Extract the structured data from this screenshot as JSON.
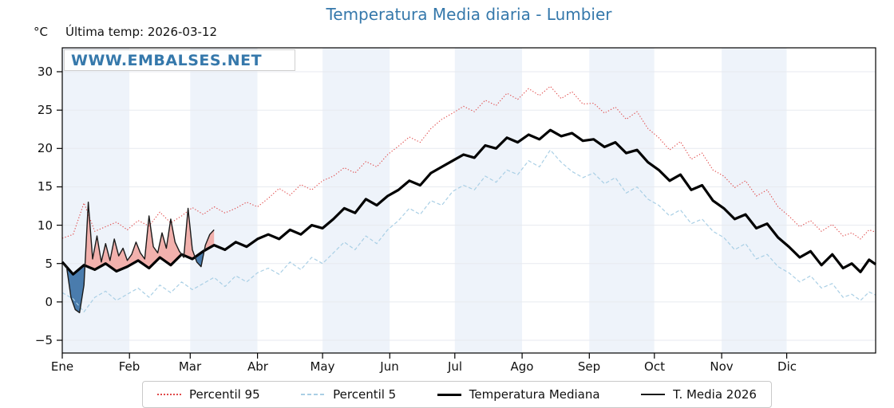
{
  "header": {
    "title": "Temperatura Media diaria - Lumbier",
    "units_label": "°C",
    "last_temp": "Última temp: 2026-03-12",
    "watermark": "WWW.EMBALSES.NET"
  },
  "legend": {
    "items": [
      {
        "label": "Percentil 95",
        "style": "red-dotted"
      },
      {
        "label": "Percentil 5",
        "style": "lightblue-dashed"
      },
      {
        "label": "Temperatura Mediana",
        "style": "black-thick"
      },
      {
        "label": "T. Media 2026",
        "style": "black-thin"
      }
    ]
  },
  "chart_data": {
    "type": "line",
    "title": "Temperatura Media diaria - Lumbier",
    "ylabel": "°C",
    "xlabel": "",
    "x_unit": "day_of_year",
    "xlim": [
      0,
      375
    ],
    "ylim": [
      -6.66,
      33.12
    ],
    "ytick_values": [
      -5,
      0,
      5,
      10,
      15,
      20,
      25,
      30
    ],
    "ytick_labels": [
      "−5",
      "0",
      "5",
      "10",
      "15",
      "20",
      "25",
      "30"
    ],
    "xtick_labels": [
      "Ene",
      "Feb",
      "Mar",
      "Abr",
      "May",
      "Jun",
      "Jul",
      "Ago",
      "Sep",
      "Oct",
      "Nov",
      "Dic"
    ],
    "month_start_days": [
      0,
      31,
      59,
      90,
      120,
      151,
      181,
      212,
      243,
      273,
      304,
      334
    ],
    "year_end_day": 365,
    "grid": true,
    "legend_position": "bottom",
    "annotation": "Última temp: 2026-03-12",
    "colors": {
      "title": "#3578ab",
      "watermark": "#3578ab",
      "axis": "#000000",
      "grid": "#e7eaef",
      "band_odd_month": "#eef3fa",
      "band_even_month": "#ffffff",
      "fill_above_median": "#f2b1ad",
      "fill_below_median": "#4a7cad"
    },
    "series": [
      {
        "name": "Percentil 95",
        "color": "#e04a4a",
        "style": "dotted",
        "width": 1.1,
        "x": [
          0,
          5,
          10,
          15,
          20,
          25,
          30,
          35,
          40,
          45,
          50,
          55,
          60,
          65,
          70,
          75,
          80,
          85,
          90,
          95,
          100,
          105,
          110,
          115,
          120,
          125,
          130,
          135,
          140,
          145,
          150,
          155,
          160,
          165,
          170,
          175,
          180,
          185,
          190,
          195,
          200,
          205,
          210,
          215,
          220,
          225,
          230,
          235,
          240,
          245,
          250,
          255,
          260,
          265,
          270,
          275,
          280,
          285,
          290,
          295,
          300,
          305,
          310,
          315,
          320,
          325,
          330,
          335,
          340,
          345,
          350,
          355,
          360,
          364,
          368,
          372,
          375
        ],
        "values": [
          8.3,
          8.8,
          12.9,
          9.2,
          9.8,
          10.4,
          9.4,
          10.6,
          9.9,
          11.7,
          10.3,
          11.2,
          12.3,
          11.4,
          12.4,
          11.6,
          12.2,
          13.0,
          12.4,
          13.5,
          14.8,
          13.9,
          15.3,
          14.6,
          15.8,
          16.4,
          17.5,
          16.8,
          18.3,
          17.6,
          19.2,
          20.3,
          21.5,
          20.8,
          22.6,
          23.8,
          24.6,
          25.5,
          24.8,
          26.3,
          25.6,
          27.2,
          26.4,
          27.8,
          26.9,
          28.1,
          26.5,
          27.4,
          25.8,
          25.9,
          24.6,
          25.4,
          23.8,
          24.8,
          22.6,
          21.4,
          19.8,
          20.9,
          18.6,
          19.4,
          17.2,
          16.4,
          14.9,
          15.8,
          13.8,
          14.6,
          12.4,
          11.2,
          9.8,
          10.6,
          9.2,
          10.1,
          8.6,
          9.0,
          8.2,
          9.4,
          9.1
        ]
      },
      {
        "name": "Percentil 5",
        "color": "#a9cfe5",
        "style": "dashed",
        "width": 1.2,
        "x": [
          0,
          5,
          10,
          15,
          20,
          25,
          30,
          35,
          40,
          45,
          50,
          55,
          60,
          65,
          70,
          75,
          80,
          85,
          90,
          95,
          100,
          105,
          110,
          115,
          120,
          125,
          130,
          135,
          140,
          145,
          150,
          155,
          160,
          165,
          170,
          175,
          180,
          185,
          190,
          195,
          200,
          205,
          210,
          215,
          220,
          225,
          230,
          235,
          240,
          245,
          250,
          255,
          260,
          265,
          270,
          275,
          280,
          285,
          290,
          295,
          300,
          305,
          310,
          315,
          320,
          325,
          330,
          335,
          340,
          345,
          350,
          355,
          360,
          364,
          368,
          372,
          375
        ],
        "values": [
          1.2,
          0.4,
          -1.3,
          0.6,
          1.4,
          0.2,
          1.0,
          1.8,
          0.6,
          2.2,
          1.2,
          2.6,
          1.6,
          2.4,
          3.2,
          2.0,
          3.4,
          2.6,
          3.8,
          4.4,
          3.6,
          5.2,
          4.2,
          5.8,
          5.0,
          6.4,
          7.8,
          6.8,
          8.6,
          7.6,
          9.4,
          10.6,
          12.2,
          11.4,
          13.2,
          12.6,
          14.4,
          15.2,
          14.6,
          16.4,
          15.6,
          17.2,
          16.6,
          18.4,
          17.6,
          19.8,
          18.2,
          17.0,
          16.2,
          16.8,
          15.4,
          16.2,
          14.2,
          15.0,
          13.4,
          12.6,
          11.2,
          12.0,
          10.2,
          10.8,
          9.2,
          8.4,
          6.8,
          7.6,
          5.6,
          6.2,
          4.6,
          3.8,
          2.6,
          3.4,
          1.8,
          2.4,
          0.6,
          1.0,
          0.2,
          1.3,
          0.9
        ]
      },
      {
        "name": "Temperatura Mediana",
        "color": "#000000",
        "style": "solid",
        "width": 3.2,
        "x": [
          0,
          5,
          10,
          15,
          20,
          25,
          30,
          35,
          40,
          45,
          50,
          55,
          60,
          65,
          70,
          75,
          80,
          85,
          90,
          95,
          100,
          105,
          110,
          115,
          120,
          125,
          130,
          135,
          140,
          145,
          150,
          155,
          160,
          165,
          170,
          175,
          180,
          185,
          190,
          195,
          200,
          205,
          210,
          215,
          220,
          225,
          230,
          235,
          240,
          245,
          250,
          255,
          260,
          265,
          270,
          275,
          280,
          285,
          290,
          295,
          300,
          305,
          310,
          315,
          320,
          325,
          330,
          335,
          340,
          345,
          350,
          355,
          360,
          364,
          368,
          372,
          375
        ],
        "values": [
          5.2,
          3.6,
          4.8,
          4.2,
          5.0,
          4.0,
          4.6,
          5.4,
          4.4,
          5.8,
          4.8,
          6.2,
          5.6,
          6.6,
          7.4,
          6.8,
          7.8,
          7.2,
          8.2,
          8.8,
          8.2,
          9.4,
          8.8,
          10.0,
          9.6,
          10.8,
          12.2,
          11.6,
          13.4,
          12.6,
          13.8,
          14.6,
          15.8,
          15.2,
          16.8,
          17.6,
          18.4,
          19.2,
          18.8,
          20.4,
          20.0,
          21.4,
          20.8,
          21.8,
          21.2,
          22.4,
          21.6,
          22.0,
          21.0,
          21.2,
          20.2,
          20.8,
          19.4,
          19.8,
          18.2,
          17.2,
          15.8,
          16.6,
          14.6,
          15.2,
          13.2,
          12.2,
          10.8,
          11.4,
          9.6,
          10.2,
          8.4,
          7.2,
          5.8,
          6.6,
          4.8,
          6.2,
          4.4,
          5.0,
          3.9,
          5.5,
          4.9
        ]
      },
      {
        "name": "T. Media 2026",
        "color": "#1a1a1a",
        "style": "solid",
        "width": 1.4,
        "x": [
          0,
          2,
          4,
          6,
          8,
          10,
          12,
          14,
          16,
          18,
          20,
          22,
          24,
          26,
          28,
          30,
          32,
          34,
          36,
          38,
          40,
          42,
          44,
          46,
          48,
          50,
          52,
          54,
          56,
          58,
          60,
          62,
          64,
          66,
          68,
          70
        ],
        "values": [
          5.0,
          4.6,
          0.6,
          -1.0,
          -1.4,
          2.2,
          13.0,
          5.6,
          8.6,
          5.2,
          7.6,
          5.4,
          8.2,
          6.0,
          7.0,
          5.4,
          6.2,
          7.8,
          6.4,
          5.6,
          11.2,
          7.2,
          6.4,
          9.0,
          7.0,
          10.8,
          7.8,
          6.6,
          5.8,
          12.2,
          6.8,
          5.2,
          4.6,
          7.4,
          8.8,
          9.4
        ]
      }
    ],
    "fills": {
      "between": [
        "T. Media 2026",
        "Temperatura Mediana"
      ],
      "above_color": "#f2b1ad",
      "below_color": "#4a7cad",
      "x_range": [
        0,
        70
      ]
    }
  }
}
